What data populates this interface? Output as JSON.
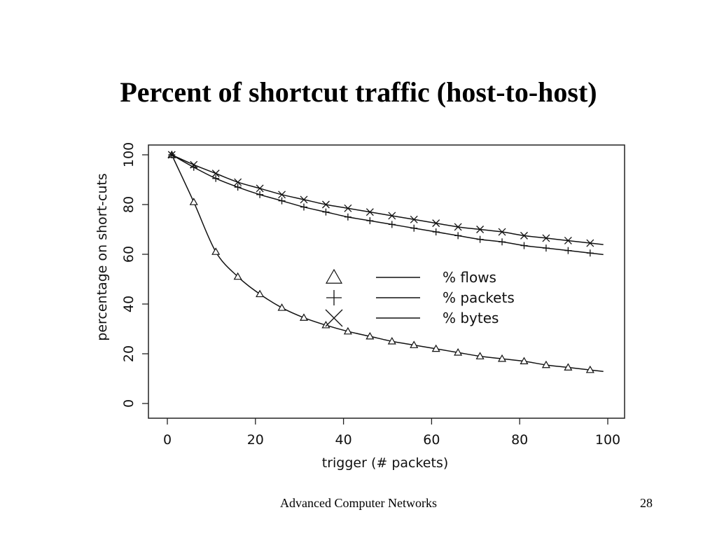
{
  "slide": {
    "title": "Percent of shortcut traffic (host-to-host)",
    "footer": "Advanced Computer Networks",
    "page_number": "28"
  },
  "chart_data": {
    "type": "line",
    "title": "",
    "xlabel": "trigger (# packets)",
    "ylabel": "percentage on short-cuts",
    "xlim": [
      0,
      100
    ],
    "ylim": [
      0,
      100
    ],
    "xticks": [
      0,
      20,
      40,
      60,
      80,
      100
    ],
    "yticks": [
      0,
      20,
      40,
      60,
      80,
      100
    ],
    "grid": false,
    "legend_position": "center-right",
    "series": [
      {
        "name": "% flows",
        "marker": "triangle",
        "x": [
          1,
          6,
          11,
          16,
          21,
          26,
          31,
          36,
          41,
          46,
          51,
          56,
          61,
          66,
          71,
          76,
          81,
          86,
          91,
          96
        ],
        "y": [
          100,
          81,
          61,
          51,
          44,
          38.5,
          34.5,
          31.5,
          29,
          27,
          25,
          23.5,
          22,
          20.5,
          19,
          18,
          17,
          15.5,
          14.5,
          13.5
        ]
      },
      {
        "name": "% packets",
        "marker": "plus",
        "x": [
          1,
          6,
          11,
          16,
          21,
          26,
          31,
          36,
          41,
          46,
          51,
          56,
          61,
          66,
          71,
          76,
          81,
          86,
          91,
          96
        ],
        "y": [
          100,
          95,
          90.5,
          87,
          84,
          81.5,
          79,
          77,
          75,
          73.5,
          72,
          70.5,
          69,
          67.5,
          66,
          65,
          63.5,
          62.5,
          61.5,
          60.5
        ]
      },
      {
        "name": "% bytes",
        "marker": "x",
        "x": [
          1,
          6,
          11,
          16,
          21,
          26,
          31,
          36,
          41,
          46,
          51,
          56,
          61,
          66,
          71,
          76,
          81,
          86,
          91,
          96
        ],
        "y": [
          100,
          96,
          92.5,
          89,
          86.5,
          84,
          82,
          80,
          78.5,
          77,
          75.5,
          74,
          72.5,
          71,
          70,
          69,
          67.5,
          66.5,
          65.5,
          64.5
        ]
      }
    ]
  }
}
